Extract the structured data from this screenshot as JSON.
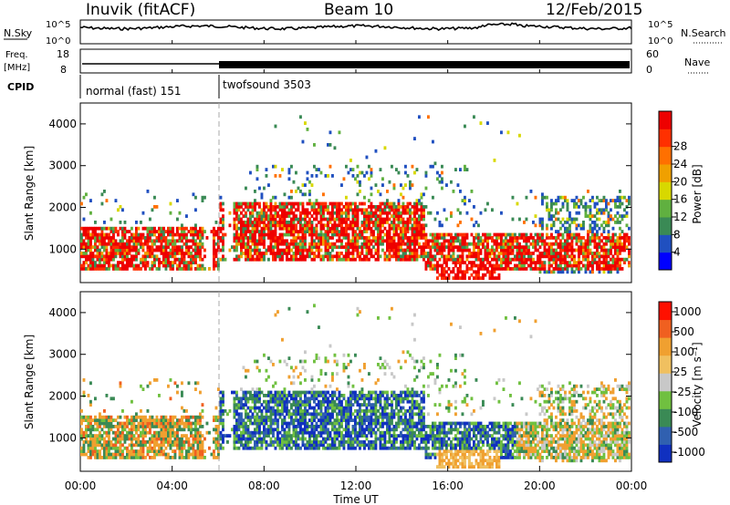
{
  "header": {
    "station": "Inuvik (fitACF)",
    "beam": "Beam 10",
    "date": "12/Feb/2015"
  },
  "side_labels": {
    "nsky": "N.Sky",
    "nsearch": "N.Search",
    "freq_line1": "Freq.",
    "freq_line2": "[MHz]",
    "nave": "Nave",
    "cpid": "CPID"
  },
  "noise_axis": {
    "left_ticks": [
      "10^5",
      "10^0"
    ],
    "right_ticks": [
      "10^5",
      "10^0"
    ]
  },
  "freq_axis": {
    "left_ticks": [
      "18",
      "8"
    ],
    "right_ticks": [
      "60",
      "0"
    ]
  },
  "cpid_segments": [
    {
      "label": "normal (fast) 151",
      "start_hour": 0,
      "end_hour": 6
    },
    {
      "label": "twofsound 3503",
      "start_hour": 6,
      "end_hour": 24
    }
  ],
  "chart_data": [
    {
      "type": "heatmap",
      "ylabel": "Slant Range [km]",
      "xlim_hours": [
        0,
        24
      ],
      "ylim": [
        200,
        4500
      ],
      "y_ticks": [
        "1000",
        "2000",
        "3000",
        "4000"
      ],
      "x_ticks": [
        "00:00",
        "04:00",
        "08:00",
        "12:00",
        "16:00",
        "20:00",
        "00:00"
      ],
      "colorbar": {
        "label": "Power [dB]",
        "ticks": [
          "4",
          "8",
          "12",
          "16",
          "20",
          "24",
          "28"
        ],
        "colors": [
          "#0000ff",
          "#2050c0",
          "#3a8a55",
          "#60b040",
          "#d8d800",
          "#f0a000",
          "#ff7000",
          "#ff3000",
          "#ee0000"
        ]
      }
    },
    {
      "type": "heatmap",
      "ylabel": "Slant Range [km]",
      "xlabel": "Time UT",
      "xlim_hours": [
        0,
        24
      ],
      "ylim": [
        200,
        4500
      ],
      "y_ticks": [
        "1000",
        "2000",
        "3000",
        "4000"
      ],
      "x_ticks": [
        "00:00",
        "04:00",
        "08:00",
        "12:00",
        "16:00",
        "20:00",
        "00:00"
      ],
      "colorbar": {
        "label": "Velocity",
        "unit": "[m s⁻¹]",
        "ticks": [
          "1000",
          "500",
          "100",
          "25",
          "-25",
          "-100",
          "-500",
          "-1000"
        ],
        "colors": [
          "#1030c0",
          "#3060b0",
          "#3a8a55",
          "#70c040",
          "#c8c8c8",
          "#f0c060",
          "#f0a030",
          "#f06020",
          "#ff1000"
        ]
      }
    }
  ]
}
